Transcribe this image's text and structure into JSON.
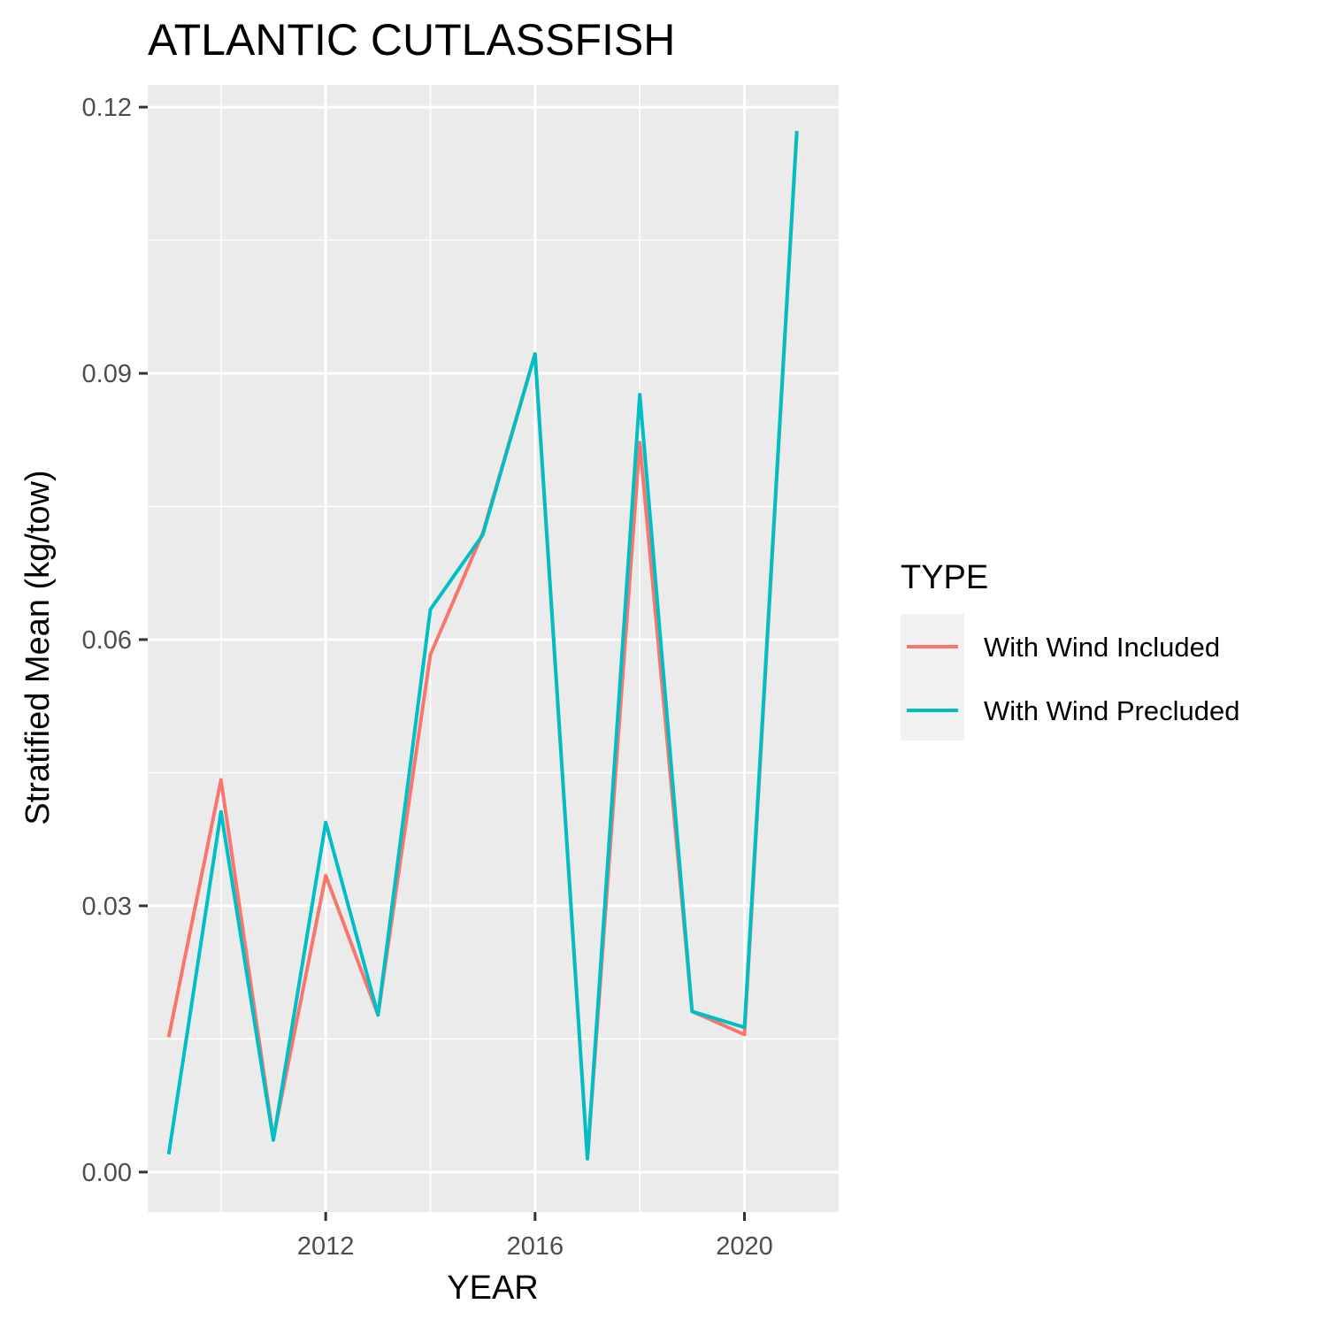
{
  "chart_data": {
    "type": "line",
    "title": "ATLANTIC CUTLASSFISH",
    "xlabel": "YEAR",
    "ylabel": "Stratified Mean (kg/tow)",
    "xlim": [
      2008.6,
      2021.8
    ],
    "ylim": [
      -0.0045,
      0.1225
    ],
    "x_ticks": [
      2012,
      2016,
      2020
    ],
    "x_tick_labels": [
      "2012",
      "2016",
      "2020"
    ],
    "y_ticks": [
      0.0,
      0.03,
      0.06,
      0.09,
      0.12
    ],
    "y_tick_labels": [
      "0.00",
      "0.03",
      "0.06",
      "0.09",
      "0.12"
    ],
    "x_minor_ticks": [
      2010,
      2014,
      2018
    ],
    "y_minor_ticks": [
      0.015,
      0.045,
      0.075,
      0.105
    ],
    "grid": true,
    "legend": {
      "title": "TYPE",
      "position": "right"
    },
    "x": [
      2009,
      2010,
      2011,
      2012,
      2013,
      2014,
      2015,
      2016,
      2017,
      2018,
      2019,
      2020,
      2021
    ],
    "series": [
      {
        "name": "With Wind Included",
        "color": "#F8766D",
        "values": [
          0.0152,
          0.0442,
          0.0038,
          0.0334,
          0.0177,
          0.0583,
          0.072,
          0.0922,
          0.0015,
          0.0822,
          0.0181,
          0.0155,
          0.1173
        ]
      },
      {
        "name": "With Wind Precluded",
        "color": "#00BFC4",
        "values": [
          0.002,
          0.0406,
          0.0036,
          0.0394,
          0.0177,
          0.0634,
          0.0718,
          0.0922,
          0.0015,
          0.0876,
          0.0181,
          0.0163,
          0.1173
        ]
      }
    ]
  }
}
